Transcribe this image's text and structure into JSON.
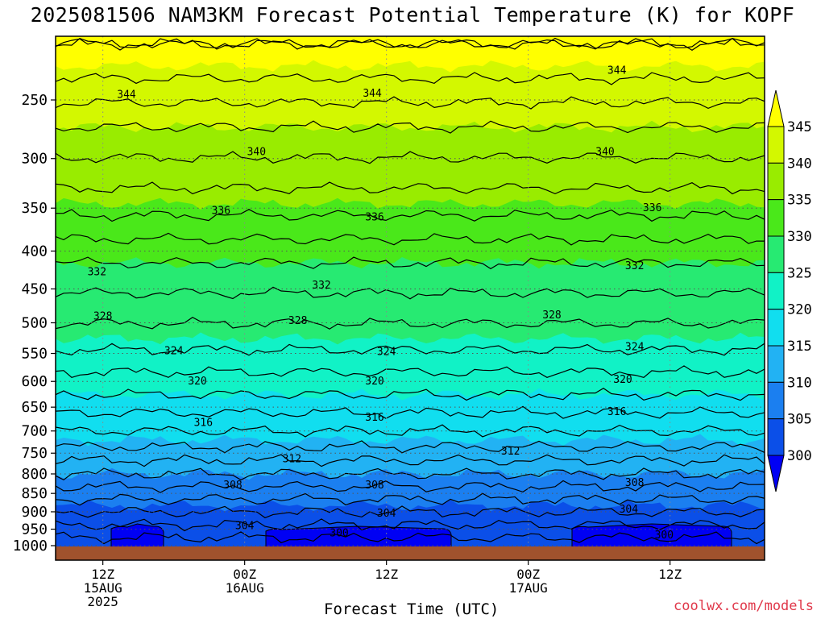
{
  "title": "2025081506 NAM3KM Forecast Potential Temperature (K) for KOPF",
  "credit": "coolwx.com/models",
  "chart_data": {
    "type": "filled-contour",
    "title": "2025081506 NAM3KM Forecast Potential Temperature (K) for KOPF",
    "xlabel": "Forecast Time (UTC)",
    "ylabel": "",
    "y_axis": {
      "scale": "log-pressure",
      "direction": "decreasing-upward",
      "range_hpa": [
        1010,
        200
      ],
      "ticks": [
        1000,
        950,
        900,
        850,
        800,
        750,
        700,
        650,
        600,
        550,
        500,
        450,
        400,
        350,
        300,
        250
      ]
    },
    "x_axis": {
      "range_hours": [
        2,
        62
      ],
      "ticks": [
        {
          "hour": 6,
          "lines": [
            "12Z",
            "15AUG",
            "2025"
          ]
        },
        {
          "hour": 18,
          "lines": [
            "00Z",
            "16AUG"
          ]
        },
        {
          "hour": 30,
          "lines": [
            "12Z"
          ]
        },
        {
          "hour": 42,
          "lines": [
            "00Z",
            "17AUG"
          ]
        },
        {
          "hour": 54,
          "lines": [
            "12Z"
          ]
        }
      ]
    },
    "grid": "dotted",
    "colorbar": {
      "position": "right",
      "labels": [
        300,
        305,
        310,
        315,
        320,
        325,
        330,
        335,
        340,
        345
      ],
      "colors": [
        "#0000f4",
        "#0b4fe8",
        "#1b7ff0",
        "#22b2f3",
        "#11deef",
        "#11f2c6",
        "#27ea72",
        "#4ae81a",
        "#99ec00",
        "#d3f800",
        "#ffff00"
      ]
    },
    "fill_bands_mean_pressure": [
      {
        "theta": 345,
        "p": 225
      },
      {
        "theta": 340,
        "p": 272
      },
      {
        "theta": 335,
        "p": 345
      },
      {
        "theta": 330,
        "p": 415
      },
      {
        "theta": 325,
        "p": 525
      },
      {
        "theta": 320,
        "p": 625
      },
      {
        "theta": 315,
        "p": 720
      },
      {
        "theta": 310,
        "p": 800
      },
      {
        "theta": 305,
        "p": 883
      },
      {
        "theta": 300,
        "p": 975
      }
    ],
    "contour_interval_k": 2,
    "contour_labels": [
      {
        "value": 344,
        "hour": 8,
        "p": 246
      },
      {
        "value": 344,
        "hour": 28.8,
        "p": 245
      },
      {
        "value": 344,
        "hour": 49.5,
        "p": 228
      },
      {
        "value": 340,
        "hour": 19,
        "p": 294
      },
      {
        "value": 340,
        "hour": 48.5,
        "p": 294
      },
      {
        "value": 336,
        "hour": 16,
        "p": 353
      },
      {
        "value": 336,
        "hour": 29,
        "p": 360
      },
      {
        "value": 336,
        "hour": 52.5,
        "p": 350
      },
      {
        "value": 332,
        "hour": 5.5,
        "p": 427
      },
      {
        "value": 332,
        "hour": 24.5,
        "p": 445
      },
      {
        "value": 332,
        "hour": 51,
        "p": 419
      },
      {
        "value": 328,
        "hour": 6,
        "p": 490
      },
      {
        "value": 328,
        "hour": 22.5,
        "p": 497
      },
      {
        "value": 328,
        "hour": 44,
        "p": 488
      },
      {
        "value": 324,
        "hour": 12,
        "p": 546
      },
      {
        "value": 324,
        "hour": 30,
        "p": 547
      },
      {
        "value": 324,
        "hour": 51,
        "p": 539
      },
      {
        "value": 320,
        "hour": 14,
        "p": 600
      },
      {
        "value": 320,
        "hour": 29,
        "p": 600
      },
      {
        "value": 320,
        "hour": 50,
        "p": 597
      },
      {
        "value": 316,
        "hour": 14.5,
        "p": 682
      },
      {
        "value": 316,
        "hour": 29,
        "p": 671
      },
      {
        "value": 316,
        "hour": 49.5,
        "p": 660
      },
      {
        "value": 312,
        "hour": 22,
        "p": 764
      },
      {
        "value": 312,
        "hour": 40.5,
        "p": 746
      },
      {
        "value": 308,
        "hour": 17,
        "p": 829
      },
      {
        "value": 308,
        "hour": 29,
        "p": 829
      },
      {
        "value": 308,
        "hour": 51,
        "p": 822
      },
      {
        "value": 304,
        "hour": 18,
        "p": 940
      },
      {
        "value": 304,
        "hour": 30,
        "p": 905
      },
      {
        "value": 304,
        "hour": 50.5,
        "p": 893
      },
      {
        "value": 300,
        "hour": 26,
        "p": 962
      },
      {
        "value": 300,
        "hour": 53.5,
        "p": 968
      }
    ],
    "surface_fill_color": "#a0522d"
  }
}
